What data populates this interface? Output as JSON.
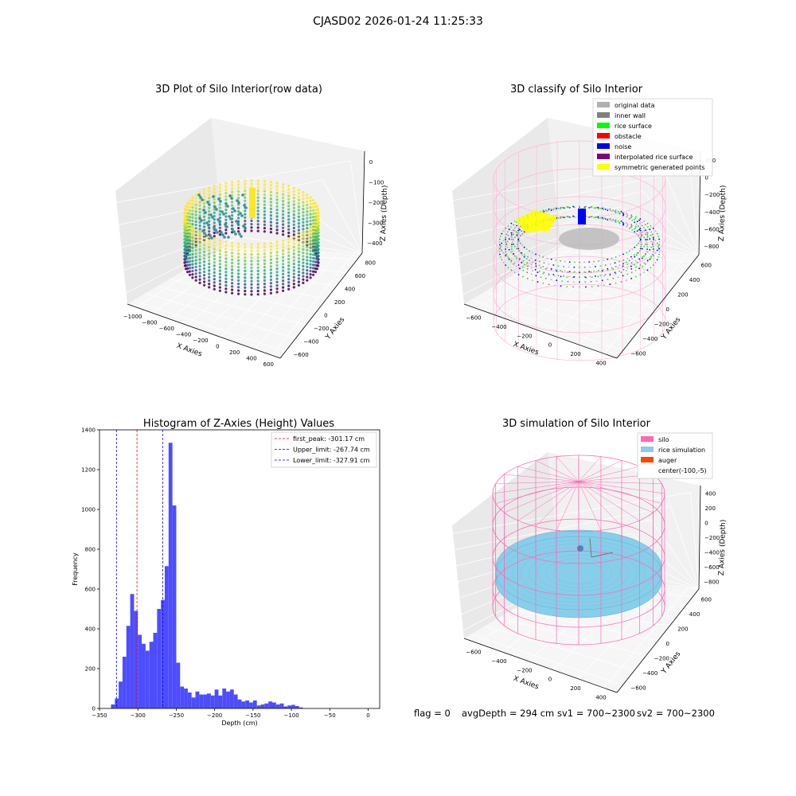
{
  "figure": {
    "suptitle": "CJASD02 2026-01-24 11:25:33",
    "footer": {
      "flag": "flag = 0",
      "avg_depth": "avgDepth = 294 cm",
      "sv1": "sv1 = 700~2300",
      "sv2": "sv2 = 700~2300"
    }
  },
  "panels": {
    "raw": {
      "title": "3D Plot of Silo Interior(row data)",
      "xlabel": "X Axies",
      "ylabel": "Y Axies",
      "zlabel": "Z Axies (Depth)",
      "x_ticks": [
        "−1000",
        "−800",
        "−600",
        "−400",
        "−200",
        "0",
        "200",
        "400",
        "600"
      ],
      "y_ticks": [
        "−600",
        "−400",
        "−200",
        "0",
        "200",
        "400",
        "600",
        "800"
      ],
      "z_ticks": [
        "0",
        "−100",
        "−200",
        "−300",
        "−400"
      ],
      "colormap": "viridis"
    },
    "classify": {
      "title": "3D classify of Silo Interior",
      "xlabel": "X Axies",
      "ylabel": "Y Axies",
      "zlabel": "Z Axies (Depth)",
      "x_ticks": [
        "−600",
        "−400",
        "−200",
        "0",
        "200",
        "400"
      ],
      "y_ticks": [
        "−600",
        "−400",
        "−200",
        "0",
        "200",
        "400",
        "600"
      ],
      "z_ticks": [
        "200",
        "0",
        "−200",
        "−400",
        "−600",
        "−800"
      ],
      "legend": [
        {
          "label": "original data",
          "color": "#b0b0b0"
        },
        {
          "label": "inner wall",
          "color": "#808080"
        },
        {
          "label": "rice surface",
          "color": "#00ff00"
        },
        {
          "label": "obstacle",
          "color": "#ff0000"
        },
        {
          "label": "noise",
          "color": "#0000ff"
        },
        {
          "label": "interpolated rice surface",
          "color": "#800080"
        },
        {
          "label": "symmetric generated points",
          "color": "#ffff00"
        }
      ]
    },
    "simulation": {
      "title": "3D simulation of Silo Interior",
      "xlabel": "X Axies",
      "ylabel": "Y Axies",
      "zlabel": "Z Axies (Depth)",
      "x_ticks": [
        "−600",
        "−400",
        "−200",
        "0",
        "200",
        "400"
      ],
      "y_ticks": [
        "−600",
        "−400",
        "−200",
        "0",
        "200",
        "400",
        "600"
      ],
      "z_ticks": [
        "400",
        "200",
        "0",
        "−200",
        "−400",
        "−600",
        "−800"
      ],
      "legend": [
        {
          "label": "silo",
          "color": "#ff69b4"
        },
        {
          "label": "rice simulation",
          "color": "#87ceeb"
        },
        {
          "label": "auger",
          "color": "#ff4500"
        },
        {
          "label": "center(-100,-5)",
          "color": "none"
        }
      ]
    }
  },
  "chart_data": {
    "type": "bar",
    "title": "Histogram of Z-Axies (Height) Values",
    "xlabel": "Depth (cm)",
    "ylabel": "Frequency",
    "xlim": [
      -350,
      15
    ],
    "ylim": [
      0,
      1400
    ],
    "x_ticks": [
      -350,
      -300,
      -250,
      -200,
      -150,
      -100,
      -50,
      0
    ],
    "y_ticks": [
      0,
      200,
      400,
      600,
      800,
      1000,
      1200,
      1400
    ],
    "bar_color": "#4d4dff",
    "bin_width": 5,
    "bin_starts": [
      -335,
      -330,
      -325,
      -320,
      -315,
      -310,
      -305,
      -300,
      -295,
      -290,
      -285,
      -280,
      -275,
      -270,
      -265,
      -260,
      -255,
      -250,
      -245,
      -240,
      -235,
      -230,
      -225,
      -220,
      -215,
      -210,
      -205,
      -200,
      -195,
      -190,
      -185,
      -180,
      -175,
      -170,
      -165,
      -160,
      -155,
      -150,
      -145,
      -140,
      -135,
      -130,
      -125,
      -120,
      -115,
      -110,
      -105,
      -100,
      -95,
      -90,
      -85,
      -80,
      -75,
      -70,
      -65,
      -60,
      -55,
      -50,
      -45,
      -40,
      -35,
      -30,
      -25,
      -20,
      -15,
      -10,
      -5,
      0
    ],
    "values": [
      20,
      50,
      135,
      260,
      415,
      575,
      490,
      370,
      325,
      290,
      335,
      380,
      500,
      545,
      715,
      1335,
      1020,
      230,
      110,
      100,
      80,
      55,
      85,
      70,
      70,
      75,
      65,
      95,
      65,
      100,
      85,
      95,
      70,
      45,
      35,
      40,
      30,
      40,
      15,
      20,
      25,
      35,
      30,
      20,
      25,
      10,
      15,
      18,
      12,
      5,
      0,
      0,
      0,
      0,
      0,
      0,
      0,
      0,
      0,
      0,
      0,
      0,
      0,
      0,
      0,
      0,
      0,
      0
    ],
    "vlines": [
      {
        "label": "first_peak: -301.17 cm",
        "x": -301.17,
        "color": "#ff0000"
      },
      {
        "label": "Upper_limit: -267.74 cm",
        "x": -267.74,
        "color": "#0000ff"
      },
      {
        "label": "Lower_limit: -327.91 cm",
        "x": -327.91,
        "color": "#0000ff"
      }
    ],
    "legend_position": "top-right"
  }
}
